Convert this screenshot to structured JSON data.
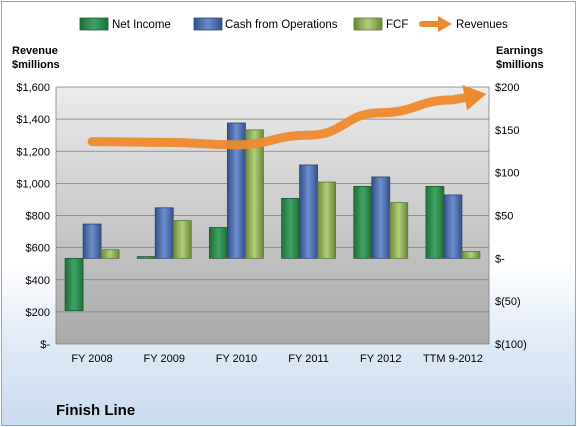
{
  "chart_data": {
    "type": "bar",
    "company": "Finish Line",
    "categories": [
      "FY 2008",
      "FY 2009",
      "FY 2010",
      "FY 2011",
      "FY 2012",
      "TTM 9-2012"
    ],
    "left_axis": {
      "title_line1": "Revenue",
      "title_line2": "$millions",
      "ylim": [
        0,
        1600
      ],
      "ticks": [
        0,
        200,
        400,
        600,
        800,
        1000,
        1200,
        1400,
        1600
      ],
      "tick_labels": [
        "$-",
        "$200",
        "$400",
        "$600",
        "$800",
        "$1,000",
        "$1,200",
        "$1,400",
        "$1,600"
      ]
    },
    "right_axis": {
      "title_line1": "Earnings",
      "title_line2": "$millions",
      "ylim": [
        -100,
        200
      ],
      "ticks": [
        -100,
        -50,
        0,
        50,
        100,
        150,
        200
      ],
      "tick_labels": [
        "$(100)",
        "$(50)",
        "$-",
        "$50",
        "$100",
        "$150",
        "$200"
      ]
    },
    "series": [
      {
        "name": "Net Income",
        "axis": "right",
        "kind": "bar",
        "color": "#2e8a4e",
        "values": [
          -61,
          2,
          36,
          70,
          84,
          84
        ]
      },
      {
        "name": "Cash from Operations",
        "axis": "right",
        "kind": "bar",
        "color": "#4a6fb0",
        "values": [
          40,
          59,
          158,
          109,
          95,
          74
        ]
      },
      {
        "name": "FCF",
        "axis": "right",
        "kind": "bar",
        "color": "#8fb05a",
        "values": [
          10,
          44,
          150,
          89,
          65,
          8
        ]
      },
      {
        "name": "Revenues",
        "axis": "left",
        "kind": "line",
        "color": "#ee8a2e",
        "values": [
          1260,
          1255,
          1240,
          1300,
          1440,
          1520
        ]
      }
    ],
    "grid": true,
    "legend_position": "top"
  }
}
